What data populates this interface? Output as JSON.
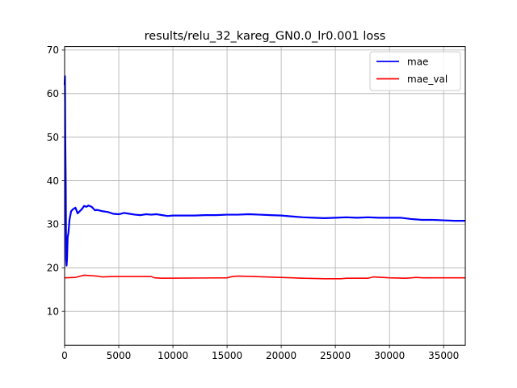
{
  "chart_data": {
    "type": "line",
    "title": "results/relu_32_kareg_GN0.0_lr0.001 loss",
    "xlabel": "",
    "ylabel": "",
    "xlim": [
      0,
      37000
    ],
    "ylim": [
      2.2,
      70.8
    ],
    "xticks": [
      0,
      5000,
      10000,
      15000,
      20000,
      25000,
      30000,
      35000
    ],
    "yticks": [
      10,
      20,
      30,
      40,
      50,
      60,
      70
    ],
    "grid": true,
    "legend_position": "upper right",
    "series": [
      {
        "name": "mae",
        "color": "#0000ff",
        "x": [
          0,
          30,
          60,
          100,
          140,
          180,
          220,
          280,
          350,
          450,
          600,
          800,
          1000,
          1200,
          1400,
          1600,
          1800,
          2000,
          2200,
          2500,
          2800,
          3000,
          3500,
          4000,
          4500,
          5000,
          5500,
          6000,
          6500,
          7000,
          7500,
          8000,
          8500,
          9000,
          9500,
          10000,
          11000,
          12000,
          13000,
          14000,
          15000,
          16000,
          17000,
          18000,
          19000,
          20000,
          21000,
          22000,
          23000,
          24000,
          25000,
          26000,
          27000,
          28000,
          29000,
          30000,
          31000,
          32000,
          33000,
          34000,
          35000,
          36000,
          37000
        ],
        "y": [
          62,
          64,
          50,
          40,
          22,
          20.5,
          22,
          27,
          28,
          31,
          33,
          33.5,
          33.8,
          32.5,
          33,
          33.5,
          34.2,
          34,
          34.3,
          34,
          33.2,
          33.3,
          33,
          32.8,
          32.4,
          32.3,
          32.6,
          32.4,
          32.2,
          32.1,
          32.3,
          32.2,
          32.3,
          32.1,
          31.9,
          32,
          32,
          32,
          32.1,
          32.1,
          32.2,
          32.2,
          32.3,
          32.2,
          32.1,
          32,
          31.8,
          31.6,
          31.5,
          31.4,
          31.5,
          31.6,
          31.5,
          31.6,
          31.5,
          31.5,
          31.5,
          31.2,
          31,
          31,
          30.9,
          30.8,
          30.8
        ]
      },
      {
        "name": "mae_val",
        "color": "#ff0000",
        "x": [
          0,
          1000,
          1800,
          3000,
          3500,
          4500,
          8000,
          8300,
          9000,
          15000,
          15500,
          16000,
          17500,
          18500,
          21000,
          22000,
          24000,
          25500,
          26000,
          28000,
          28500,
          30000,
          31500,
          32500,
          33000,
          37000
        ],
        "y": [
          17.7,
          17.8,
          18.3,
          18.1,
          17.9,
          18,
          18,
          17.7,
          17.6,
          17.7,
          18,
          18.1,
          18,
          17.9,
          17.7,
          17.6,
          17.5,
          17.5,
          17.6,
          17.6,
          17.9,
          17.7,
          17.6,
          17.8,
          17.7,
          17.7
        ]
      }
    ]
  }
}
